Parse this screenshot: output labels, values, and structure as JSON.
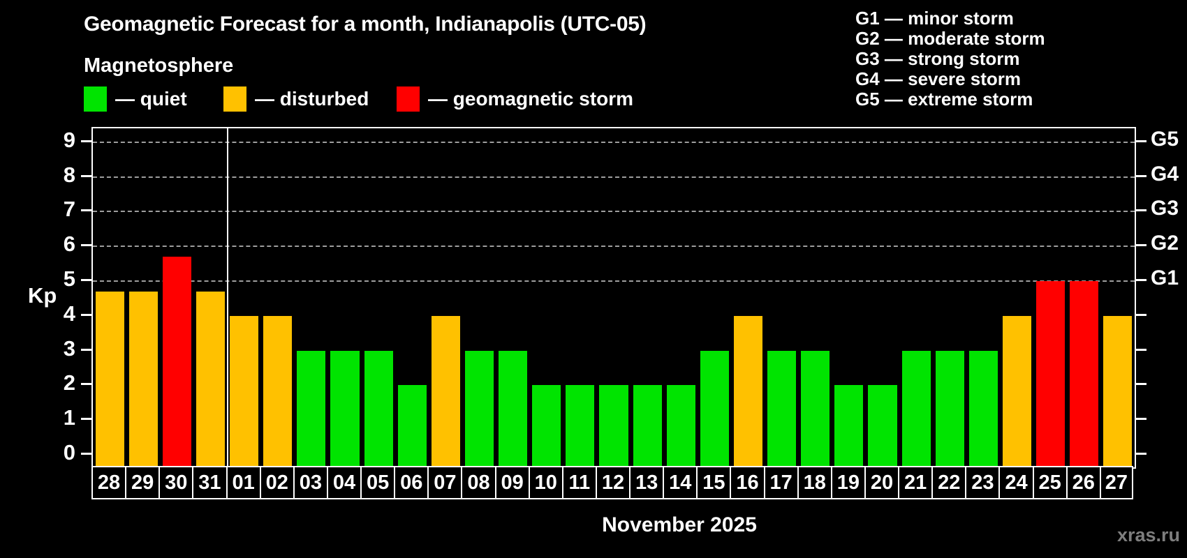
{
  "header": {
    "title": "Geomagnetic Forecast for a month, Indianapolis (UTC-05)",
    "subtitle": "Magnetosphere"
  },
  "legend": {
    "items": [
      {
        "state": "quiet",
        "label": "— quiet",
        "color": "#00e400"
      },
      {
        "state": "disturbed",
        "label": "— disturbed",
        "color": "#ffc100"
      },
      {
        "state": "storm",
        "label": "— geomagnetic storm",
        "color": "#ff0000"
      }
    ]
  },
  "g_legend": [
    "G1 — minor storm",
    "G2 — moderate storm",
    "G3 — strong storm",
    "G4 — severe storm",
    "G5 — extreme storm"
  ],
  "watermark": "xras.ru",
  "chart_data": {
    "type": "bar",
    "title": "Geomagnetic Forecast for a month, Indianapolis (UTC-05)",
    "xlabel": "November 2025",
    "ylabel": "Kp",
    "ylim": [
      0,
      9
    ],
    "yticks": [
      0,
      1,
      2,
      3,
      4,
      5,
      6,
      7,
      8,
      9
    ],
    "gridlines_kp": [
      5,
      6,
      7,
      8,
      9
    ],
    "grid": "dashed horizontal at Kp 5-9 only",
    "legend_position": "top",
    "right_axis_labels": [
      {
        "label": "G1",
        "kp": 5
      },
      {
        "label": "G2",
        "kp": 6
      },
      {
        "label": "G3",
        "kp": 7
      },
      {
        "label": "G4",
        "kp": 8
      },
      {
        "label": "G5",
        "kp": 9
      }
    ],
    "month_separator_after_index": 3,
    "categories": [
      "28",
      "29",
      "30",
      "31",
      "01",
      "02",
      "03",
      "04",
      "05",
      "06",
      "07",
      "08",
      "09",
      "10",
      "11",
      "12",
      "13",
      "14",
      "15",
      "16",
      "17",
      "18",
      "19",
      "20",
      "21",
      "22",
      "23",
      "24",
      "25",
      "26",
      "27"
    ],
    "values": [
      4.7,
      4.7,
      5.7,
      4.7,
      4,
      4,
      3,
      3,
      3,
      2,
      4,
      3,
      3,
      2,
      2,
      2,
      2,
      2,
      3,
      4,
      3,
      3,
      2,
      2,
      3,
      3,
      3,
      4,
      5,
      5,
      4
    ],
    "states": [
      "disturbed",
      "disturbed",
      "storm",
      "disturbed",
      "disturbed",
      "disturbed",
      "quiet",
      "quiet",
      "quiet",
      "quiet",
      "disturbed",
      "quiet",
      "quiet",
      "quiet",
      "quiet",
      "quiet",
      "quiet",
      "quiet",
      "quiet",
      "disturbed",
      "quiet",
      "quiet",
      "quiet",
      "quiet",
      "quiet",
      "quiet",
      "quiet",
      "disturbed",
      "storm",
      "storm",
      "disturbed"
    ]
  }
}
